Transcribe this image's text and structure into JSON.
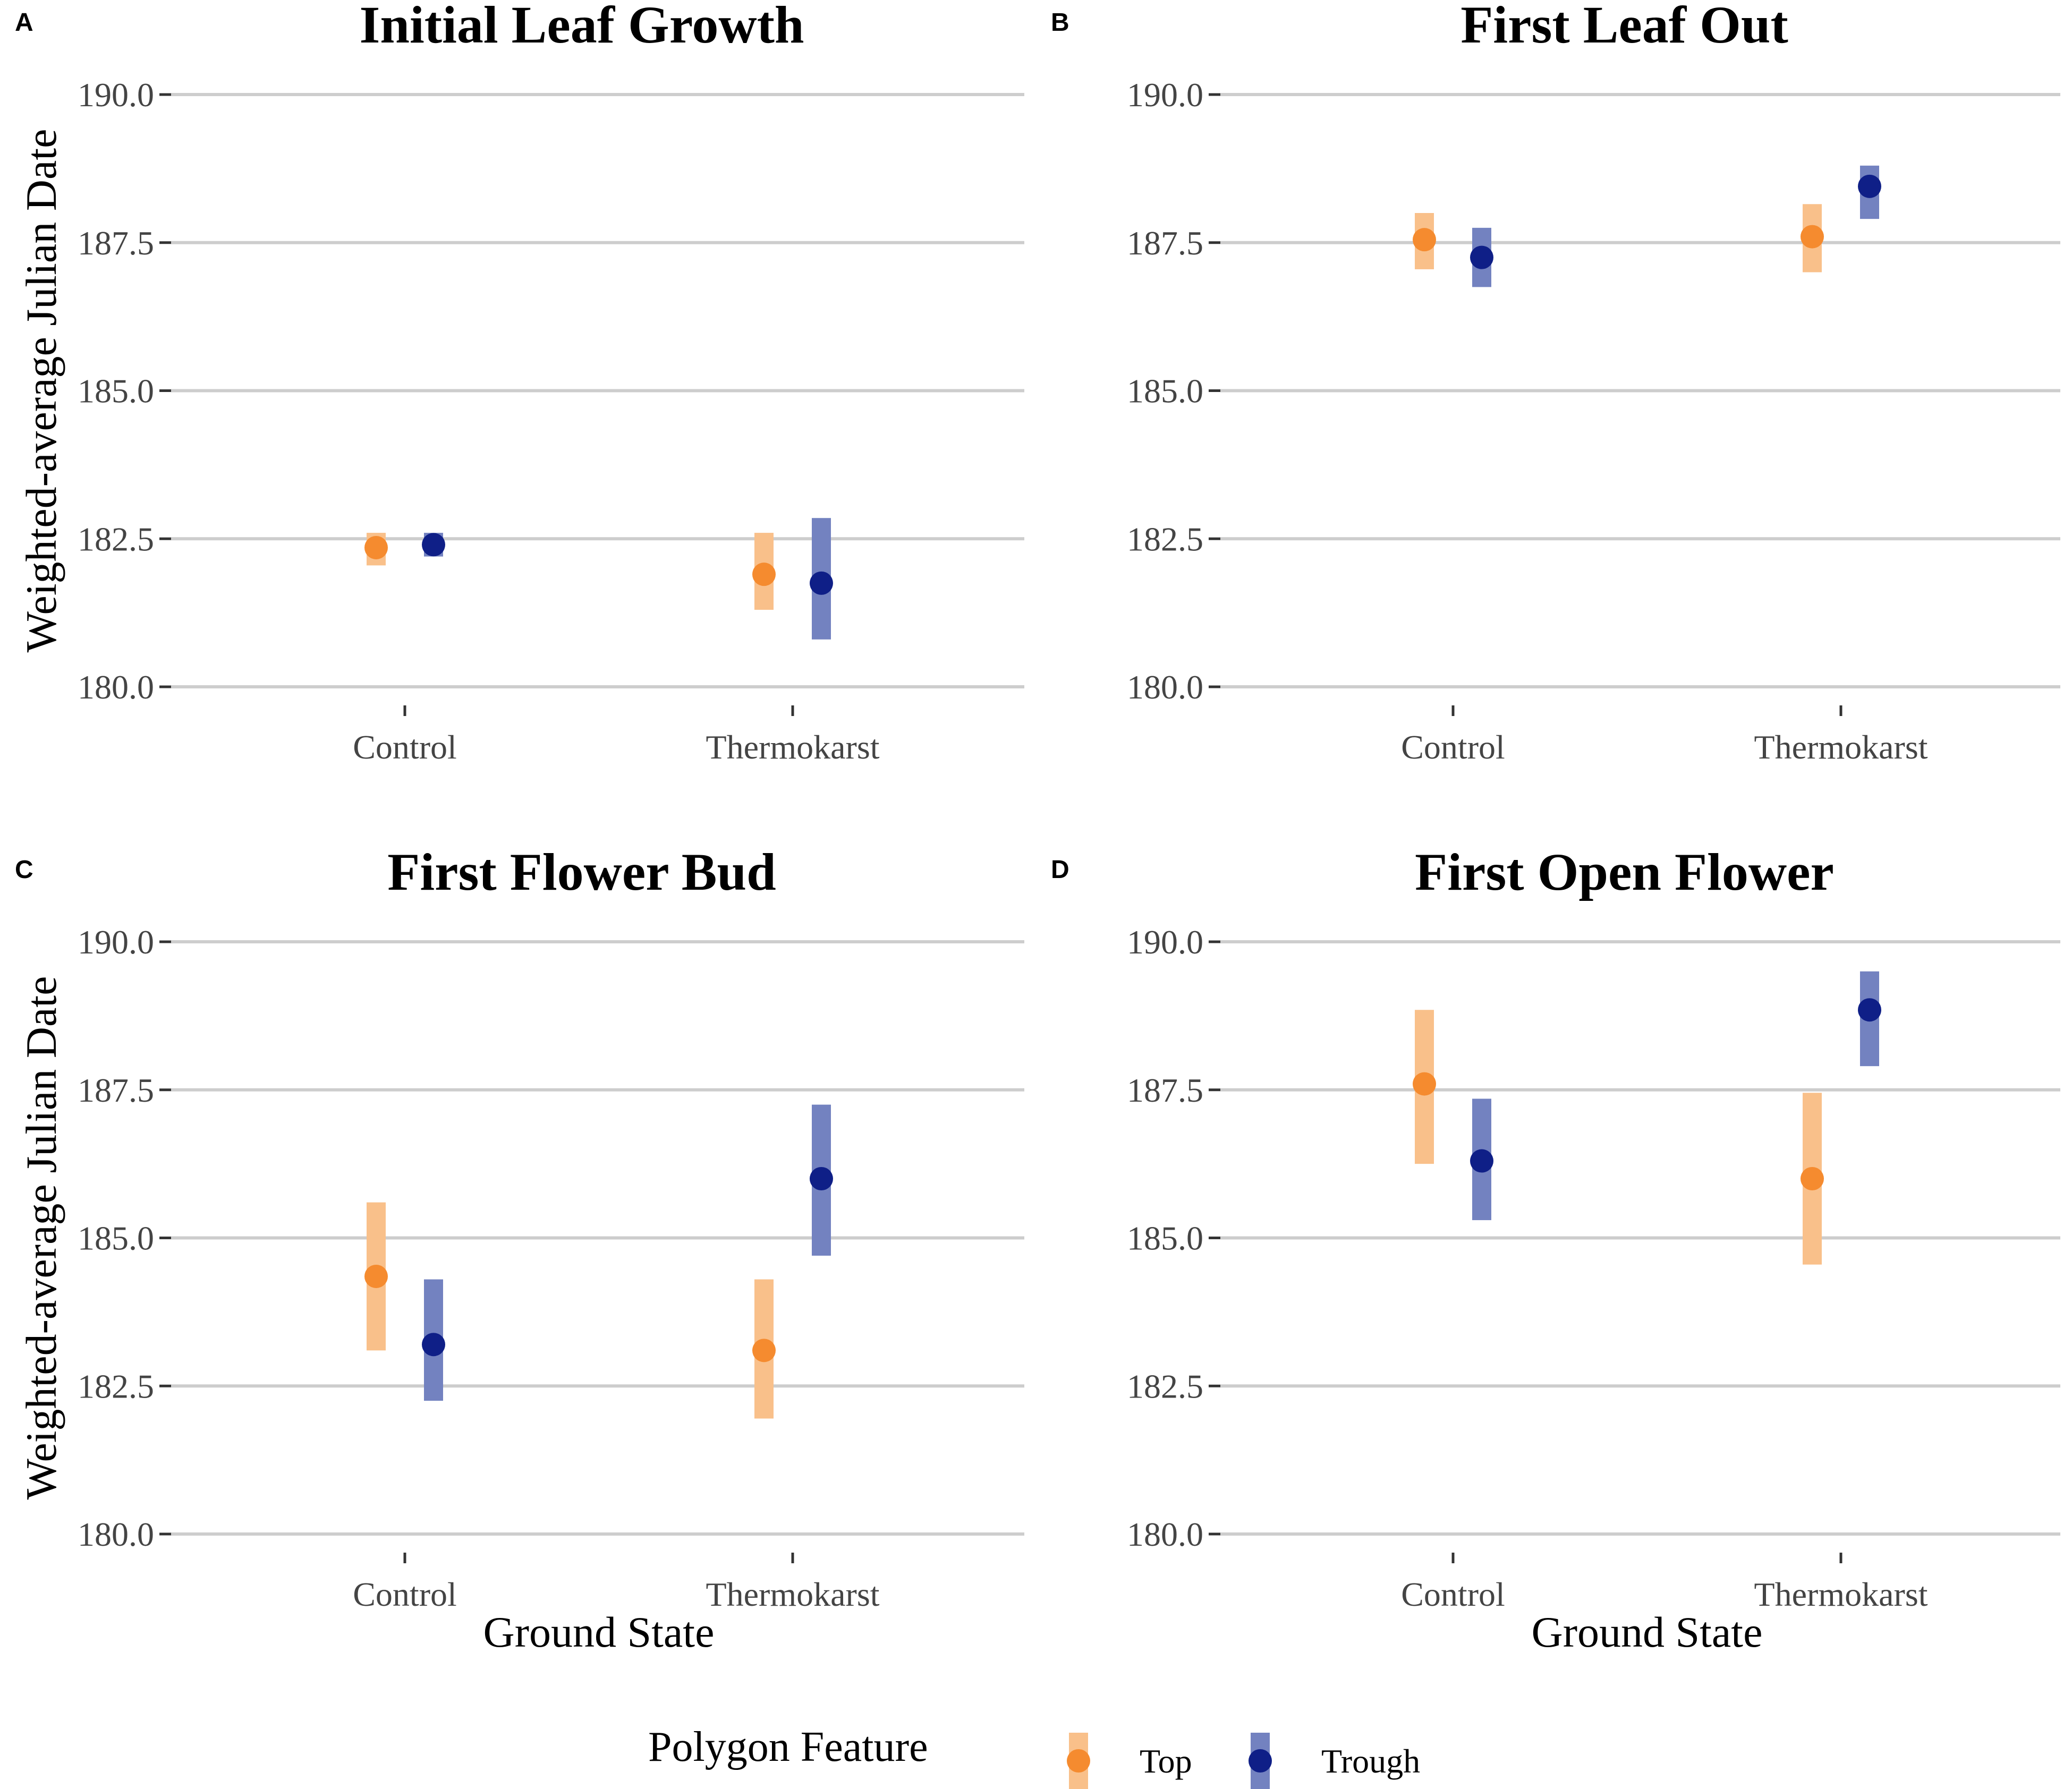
{
  "chart_data": {
    "type": "scatter",
    "colors": {
      "Top": "#F58B2F",
      "Trough": "#0F1F87",
      "Top_bar": "#F9C08A",
      "Trough_bar": "#7382C0"
    },
    "y_axis_label": "Weighted-average Julian Date",
    "x_axis_label": "Ground State",
    "y_ticks": [
      "190.0",
      "187.5",
      "185.0",
      "182.5",
      "180.0"
    ],
    "ylim": [
      180.0,
      190.0
    ],
    "categories": [
      "Control",
      "Thermokarst"
    ],
    "legend": {
      "title": "Polygon Feature",
      "entries": [
        "Top",
        "Trough"
      ]
    },
    "panels": [
      {
        "label": "A",
        "title": "Initial Leaf Growth",
        "series": [
          {
            "name": "Top",
            "values": [
              182.35,
              181.9
            ],
            "low": [
              182.05,
              181.3
            ],
            "high": [
              182.6,
              182.6
            ]
          },
          {
            "name": "Trough",
            "values": [
              182.4,
              181.75
            ],
            "low": [
              182.2,
              180.8
            ],
            "high": [
              182.6,
              182.85
            ]
          }
        ]
      },
      {
        "label": "B",
        "title": "First Leaf Out",
        "series": [
          {
            "name": "Top",
            "values": [
              187.55,
              187.6
            ],
            "low": [
              187.05,
              187.0
            ],
            "high": [
              188.0,
              188.15
            ]
          },
          {
            "name": "Trough",
            "values": [
              187.25,
              188.45
            ],
            "low": [
              186.75,
              187.9
            ],
            "high": [
              187.75,
              188.8
            ]
          }
        ]
      },
      {
        "label": "C",
        "title": "First Flower Bud",
        "series": [
          {
            "name": "Top",
            "values": [
              184.35,
              183.1
            ],
            "low": [
              183.1,
              181.95
            ],
            "high": [
              185.6,
              184.3
            ]
          },
          {
            "name": "Trough",
            "values": [
              183.2,
              186.0
            ],
            "low": [
              182.25,
              184.7
            ],
            "high": [
              184.3,
              187.25
            ]
          }
        ]
      },
      {
        "label": "D",
        "title": "First Open Flower",
        "series": [
          {
            "name": "Top",
            "values": [
              187.6,
              186.0
            ],
            "low": [
              186.25,
              184.55
            ],
            "high": [
              188.85,
              187.45
            ]
          },
          {
            "name": "Trough",
            "values": [
              186.3,
              188.85
            ],
            "low": [
              185.3,
              187.9
            ],
            "high": [
              187.35,
              189.5
            ]
          }
        ]
      }
    ]
  }
}
